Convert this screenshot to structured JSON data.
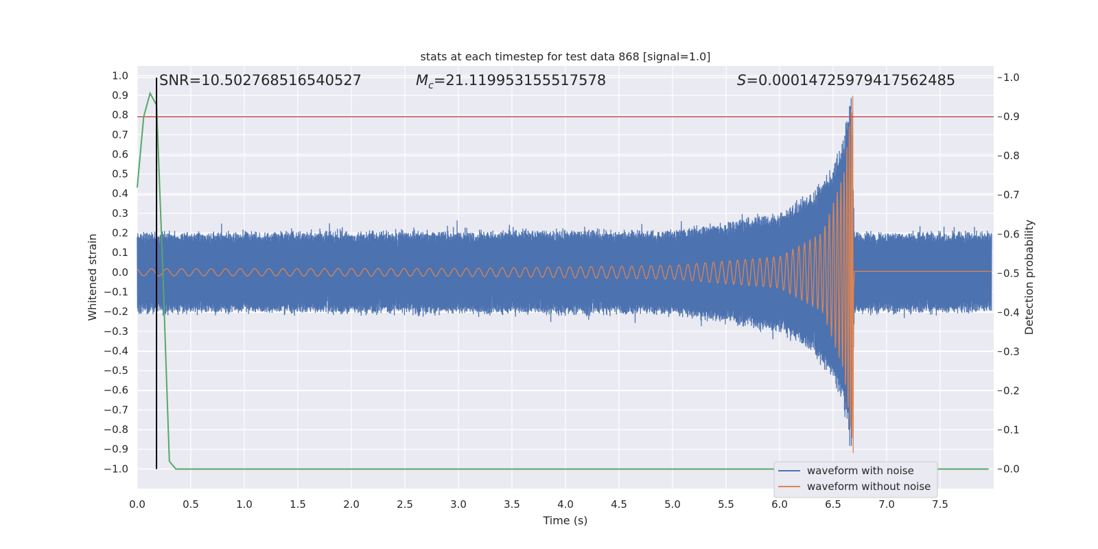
{
  "chart_data": {
    "type": "line",
    "title": "stats at each timestep for test data 868 [signal=1.0]",
    "xlabel": "Time (s)",
    "ylabel_left": "Whitened strain",
    "ylabel_right": "Detection probability",
    "xlim": [
      0.0,
      8.0
    ],
    "ylim_left": [
      -1.1,
      1.05
    ],
    "ylim_right": [
      -0.05,
      1.03
    ],
    "x_ticks": [
      0.0,
      0.5,
      1.0,
      1.5,
      2.0,
      2.5,
      3.0,
      3.5,
      4.0,
      4.5,
      5.0,
      5.5,
      6.0,
      6.5,
      7.0,
      7.5
    ],
    "x_tick_labels": [
      "0.0",
      "0.5",
      "1.0",
      "1.5",
      "2.0",
      "2.5",
      "3.0",
      "3.5",
      "4.0",
      "4.5",
      "5.0",
      "5.5",
      "6.0",
      "6.5",
      "7.0",
      "7.5"
    ],
    "y_left_ticks": [
      1.0,
      0.9,
      0.8,
      0.7,
      0.6,
      0.5,
      0.4,
      0.3,
      0.2,
      0.1,
      0.0,
      -0.1,
      -0.2,
      -0.3,
      -0.4,
      -0.5,
      -0.6,
      -0.7,
      -0.8,
      -0.9,
      -1.0
    ],
    "y_left_tick_labels": [
      "1.0",
      "0.9",
      "0.8",
      "0.7",
      "0.6",
      "0.5",
      "0.4",
      "0.3",
      "0.2",
      "0.1",
      "0.0",
      "−0.1",
      "−0.2",
      "−0.3",
      "−0.4",
      "−0.5",
      "−0.6",
      "−0.7",
      "−0.8",
      "−0.9",
      "−1.0"
    ],
    "y_right_ticks": [
      1.0,
      0.9,
      0.8,
      0.7,
      0.6,
      0.5,
      0.4,
      0.3,
      0.2,
      0.1,
      0.0
    ],
    "y_right_tick_labels": [
      "1.0",
      "0.9",
      "0.8",
      "0.7",
      "0.6",
      "0.5",
      "0.4",
      "0.3",
      "0.2",
      "0.1",
      "0.0"
    ],
    "grid": true,
    "annotations": {
      "snr": "SNR=10.502768516540527",
      "mc_symbol": "M",
      "mc_sub": "c",
      "mc_value": "=21.119953155517578",
      "s_symbol": "S",
      "s_value": "=0.00014725979417562485"
    },
    "series": [
      {
        "name": "waveform with noise",
        "color": "#4c72b0",
        "axis": "left",
        "noise_amplitude": 0.2,
        "envelope_x": [
          0.0,
          5.0,
          5.5,
          6.0,
          6.3,
          6.5,
          6.6,
          6.67,
          6.7
        ],
        "envelope_y": [
          0.2,
          0.21,
          0.25,
          0.3,
          0.4,
          0.55,
          0.7,
          0.93,
          0.2
        ]
      },
      {
        "name": "waveform without noise",
        "color": "#dd8452",
        "axis": "left",
        "chirp_start_freq": 7,
        "merger_time": 6.69,
        "amplitude_x": [
          0.0,
          3.0,
          5.0,
          6.0,
          6.4,
          6.6,
          6.69
        ],
        "amplitude_y": [
          0.018,
          0.02,
          0.035,
          0.08,
          0.2,
          0.5,
          0.93
        ],
        "post_merger_value": 0.005
      },
      {
        "name": "detection probability",
        "color": "#55a868",
        "axis": "right",
        "x": [
          0.0,
          0.06,
          0.12,
          0.18,
          0.24,
          0.3,
          0.36,
          0.5,
          1.0,
          2.0,
          3.0,
          4.0,
          5.0,
          6.0,
          7.0,
          7.95
        ],
        "y": [
          0.72,
          0.9,
          0.96,
          0.93,
          0.5,
          0.02,
          0.0,
          0.0,
          0.0,
          0.0,
          0.0,
          0.0,
          0.0,
          0.0,
          0.0,
          0.0
        ]
      }
    ],
    "threshold_line": {
      "axis": "right",
      "value": 0.9,
      "color": "#c44e52"
    },
    "vertical_marker": {
      "x": 0.18,
      "color": "#000000"
    },
    "legend": {
      "placement": "lower-right",
      "entries": [
        "waveform with noise",
        "waveform without noise"
      ]
    }
  }
}
